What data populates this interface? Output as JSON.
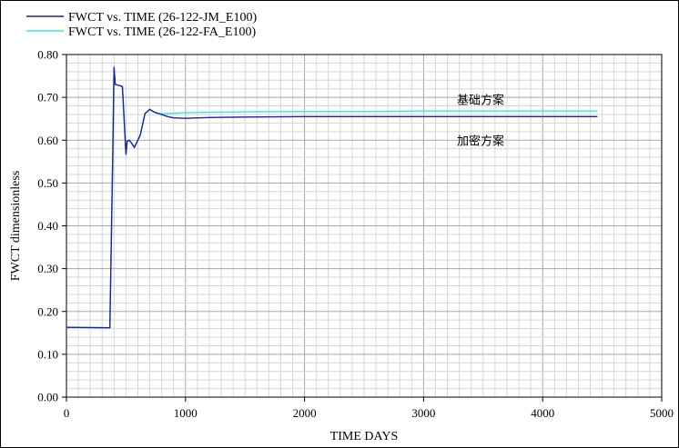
{
  "chart_data": {
    "type": "line",
    "xlabel": "TIME DAYS",
    "ylabel": "FWCT dimensionless",
    "xlim": [
      0,
      5000
    ],
    "ylim": [
      0,
      0.8
    ],
    "x_ticks": [
      0,
      1000,
      2000,
      3000,
      4000,
      5000
    ],
    "y_ticks": [
      "0.00",
      "0.10",
      "0.20",
      "0.30",
      "0.40",
      "0.50",
      "0.60",
      "0.70",
      "0.80"
    ],
    "grid": true,
    "legend_position": "top-left",
    "series": [
      {
        "name": "FWCT vs. TIME (26-122-JM_E100)",
        "color": "#1f1fa8",
        "x": [
          0,
          365,
          390,
          400,
          410,
          440,
          470,
          500,
          510,
          530,
          570,
          620,
          660,
          700,
          740,
          800,
          850,
          900,
          1000,
          1200,
          1500,
          2000,
          2500,
          3000,
          3500,
          4000,
          4460
        ],
        "y": [
          0.163,
          0.162,
          0.58,
          0.77,
          0.73,
          0.728,
          0.725,
          0.567,
          0.598,
          0.6,
          0.583,
          0.612,
          0.662,
          0.672,
          0.665,
          0.66,
          0.655,
          0.652,
          0.651,
          0.653,
          0.654,
          0.655,
          0.655,
          0.655,
          0.655,
          0.655,
          0.655
        ]
      },
      {
        "name": "FWCT vs. TIME (26-122-FA_E100)",
        "color": "#33e6e6",
        "x": [
          0,
          365,
          390,
          400,
          410,
          440,
          470,
          500,
          510,
          530,
          570,
          620,
          660,
          700,
          740,
          800,
          850,
          900,
          1000,
          1200,
          1500,
          2000,
          2500,
          3000,
          3500,
          4000,
          4460
        ],
        "y": [
          0.163,
          0.162,
          0.58,
          0.77,
          0.73,
          0.728,
          0.725,
          0.567,
          0.598,
          0.6,
          0.583,
          0.612,
          0.662,
          0.672,
          0.665,
          0.661,
          0.662,
          0.663,
          0.664,
          0.665,
          0.666,
          0.667,
          0.667,
          0.668,
          0.668,
          0.668,
          0.668
        ]
      }
    ],
    "annotations": [
      {
        "text": "基础方案",
        "x": 3280,
        "y": 0.695
      },
      {
        "text": "加密方案",
        "x": 3280,
        "y": 0.6
      }
    ]
  }
}
